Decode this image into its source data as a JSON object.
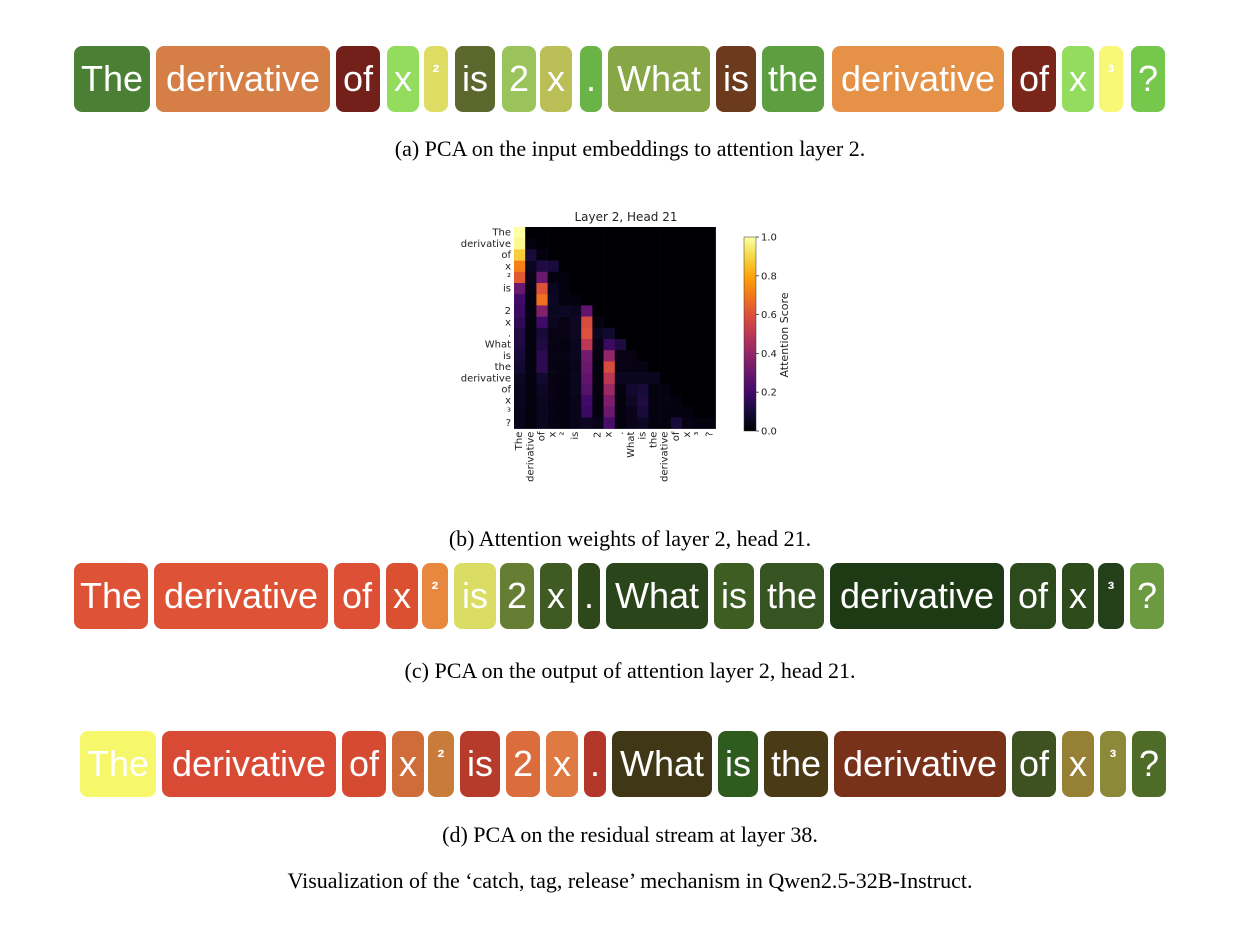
{
  "panel_a": {
    "caption": "(a) PCA on the input embeddings to attention layer 2.",
    "tokens": [
      {
        "text": "The",
        "color": "#4b8034"
      },
      {
        "text": "derivative",
        "color": "#d57e45"
      },
      {
        "text": "of",
        "color": "#731f1a"
      },
      {
        "text": "x",
        "color": "#93dc5e"
      },
      {
        "text": "²",
        "color": "#dedc63",
        "sup": true
      },
      {
        "text": "is",
        "color": "#5c672d"
      },
      {
        "text": "2",
        "color": "#9bc35c"
      },
      {
        "text": "x",
        "color": "#b9be56"
      },
      {
        "text": ".",
        "color": "#6ab347"
      },
      {
        "text": "What",
        "color": "#87a746"
      },
      {
        "text": "is",
        "color": "#6c3a1d"
      },
      {
        "text": "the",
        "color": "#5d9f40"
      },
      {
        "text": "derivative",
        "color": "#e59248"
      },
      {
        "text": "of",
        "color": "#7a2519"
      },
      {
        "text": "x",
        "color": "#93dc5e"
      },
      {
        "text": "³",
        "color": "#f8f876",
        "sup": true
      },
      {
        "text": "?",
        "color": "#75c84c"
      }
    ]
  },
  "panel_b": {
    "caption": "(b) Attention weights of layer 2, head 21."
  },
  "panel_c": {
    "caption": "(c) PCA on the output of attention layer 2, head 21.",
    "tokens": [
      {
        "text": "The",
        "color": "#de5235"
      },
      {
        "text": "derivative",
        "color": "#de5235"
      },
      {
        "text": "of",
        "color": "#dd5035"
      },
      {
        "text": "x",
        "color": "#dc5032"
      },
      {
        "text": "²",
        "color": "#e8873e",
        "sup": true
      },
      {
        "text": "is",
        "color": "#dbdc64"
      },
      {
        "text": "2",
        "color": "#667d34"
      },
      {
        "text": "x",
        "color": "#3f5a22"
      },
      {
        "text": ".",
        "color": "#2e471b"
      },
      {
        "text": "What",
        "color": "#2b451a"
      },
      {
        "text": "is",
        "color": "#3d5d23"
      },
      {
        "text": "the",
        "color": "#365422"
      },
      {
        "text": "derivative",
        "color": "#1e3a14"
      },
      {
        "text": "of",
        "color": "#2c4a1b"
      },
      {
        "text": "x",
        "color": "#2e4b1c"
      },
      {
        "text": "³",
        "color": "#24401a",
        "sup": true
      },
      {
        "text": "?",
        "color": "#6b9a40"
      }
    ]
  },
  "panel_d": {
    "caption": "(d) PCA on the residual stream at layer 38.",
    "tokens": [
      {
        "text": "The",
        "color": "#f7f76b"
      },
      {
        "text": "derivative",
        "color": "#d84a33"
      },
      {
        "text": "of",
        "color": "#d54b32"
      },
      {
        "text": "x",
        "color": "#d06c3a"
      },
      {
        "text": "²",
        "color": "#c97b3c",
        "sup": true
      },
      {
        "text": "is",
        "color": "#b63b2a"
      },
      {
        "text": "2",
        "color": "#db6c3c"
      },
      {
        "text": "x",
        "color": "#de7a42"
      },
      {
        "text": ".",
        "color": "#b2362a"
      },
      {
        "text": "What",
        "color": "#3f3716"
      },
      {
        "text": "is",
        "color": "#2e5c1f"
      },
      {
        "text": "the",
        "color": "#4b3a16"
      },
      {
        "text": "derivative",
        "color": "#7a3119"
      },
      {
        "text": "of",
        "color": "#3e5121"
      },
      {
        "text": "x",
        "color": "#968036"
      },
      {
        "text": "³",
        "color": "#8c8a3a",
        "sup": true
      },
      {
        "text": "?",
        "color": "#4f6b28"
      }
    ]
  },
  "figure_caption": "Visualization of the ‘catch, tag, release’ mechanism in Qwen2.5-32B-Instruct.",
  "chart_data": {
    "type": "heatmap",
    "title": "Layer 2, Head 21",
    "colorbar_label": "Attention Score",
    "colorbar_ticks": [
      "0.0",
      "0.2",
      "0.4",
      "0.6",
      "0.8",
      "1.0"
    ],
    "colormap": "inferno",
    "vmin": 0.0,
    "vmax": 1.0,
    "y_labels": [
      "The",
      "derivative",
      "of",
      "x",
      "²",
      "is",
      " ",
      "2",
      "x",
      ".",
      "What",
      "is",
      "the",
      "derivative",
      "of",
      "x",
      "³",
      "?"
    ],
    "x_labels": [
      "The",
      "derivative",
      "of",
      "x",
      "²",
      "is",
      " ",
      "2",
      "x",
      ".",
      "What",
      "is",
      "the",
      "derivative",
      "of",
      "x",
      "³",
      "?"
    ],
    "values": [
      [
        1.0,
        0,
        0,
        0,
        0,
        0,
        0,
        0,
        0,
        0,
        0,
        0,
        0,
        0,
        0,
        0,
        0,
        0
      ],
      [
        0.98,
        0.02,
        0,
        0,
        0,
        0,
        0,
        0,
        0,
        0,
        0,
        0,
        0,
        0,
        0,
        0,
        0,
        0
      ],
      [
        0.88,
        0.1,
        0.02,
        0,
        0,
        0,
        0,
        0,
        0,
        0,
        0,
        0,
        0,
        0,
        0,
        0,
        0,
        0
      ],
      [
        0.72,
        0.05,
        0.12,
        0.11,
        0,
        0,
        0,
        0,
        0,
        0,
        0,
        0,
        0,
        0,
        0,
        0,
        0,
        0
      ],
      [
        0.62,
        0.04,
        0.3,
        0.02,
        0.02,
        0,
        0,
        0,
        0,
        0,
        0,
        0,
        0,
        0,
        0,
        0,
        0,
        0
      ],
      [
        0.3,
        0.03,
        0.6,
        0.05,
        0.02,
        0,
        0,
        0,
        0,
        0,
        0,
        0,
        0,
        0,
        0,
        0,
        0,
        0
      ],
      [
        0.2,
        0.02,
        0.68,
        0.06,
        0.02,
        0.02,
        0,
        0,
        0,
        0,
        0,
        0,
        0,
        0,
        0,
        0,
        0,
        0
      ],
      [
        0.18,
        0.02,
        0.36,
        0.05,
        0.06,
        0.05,
        0.28,
        0,
        0,
        0,
        0,
        0,
        0,
        0,
        0,
        0,
        0,
        0
      ],
      [
        0.16,
        0.02,
        0.2,
        0.05,
        0.03,
        0.06,
        0.58,
        0.02,
        0,
        0,
        0,
        0,
        0,
        0,
        0,
        0,
        0,
        0
      ],
      [
        0.12,
        0.02,
        0.1,
        0.03,
        0.03,
        0.06,
        0.6,
        0.05,
        0.08,
        0,
        0,
        0,
        0,
        0,
        0,
        0,
        0,
        0
      ],
      [
        0.12,
        0.02,
        0.12,
        0.03,
        0.02,
        0.05,
        0.5,
        0.03,
        0.18,
        0.12,
        0,
        0,
        0,
        0,
        0,
        0,
        0,
        0
      ],
      [
        0.1,
        0.02,
        0.15,
        0.03,
        0.03,
        0.05,
        0.32,
        0.02,
        0.4,
        0.03,
        0.03,
        0,
        0,
        0,
        0,
        0,
        0,
        0
      ],
      [
        0.08,
        0.02,
        0.15,
        0.03,
        0.02,
        0.04,
        0.3,
        0.02,
        0.58,
        0.03,
        0.03,
        0.03,
        0,
        0,
        0,
        0,
        0,
        0
      ],
      [
        0.06,
        0.02,
        0.08,
        0.03,
        0.02,
        0.05,
        0.28,
        0.02,
        0.5,
        0.05,
        0.05,
        0.05,
        0.05,
        0,
        0,
        0,
        0,
        0
      ],
      [
        0.05,
        0.02,
        0.06,
        0.03,
        0.02,
        0.05,
        0.25,
        0.02,
        0.42,
        0.02,
        0.08,
        0.1,
        0.02,
        0.02,
        0,
        0,
        0,
        0
      ],
      [
        0.05,
        0.02,
        0.05,
        0.03,
        0.02,
        0.04,
        0.2,
        0.02,
        0.35,
        0.02,
        0.06,
        0.12,
        0.02,
        0.03,
        0.02,
        0,
        0,
        0
      ],
      [
        0.04,
        0.02,
        0.05,
        0.03,
        0.02,
        0.04,
        0.18,
        0.02,
        0.3,
        0.02,
        0.04,
        0.1,
        0.02,
        0.02,
        0.02,
        0.02,
        0,
        0
      ],
      [
        0.04,
        0.02,
        0.05,
        0.03,
        0.02,
        0.04,
        0.06,
        0.04,
        0.22,
        0.02,
        0.04,
        0.06,
        0.02,
        0.02,
        0.1,
        0.03,
        0.02,
        0.02
      ]
    ]
  }
}
